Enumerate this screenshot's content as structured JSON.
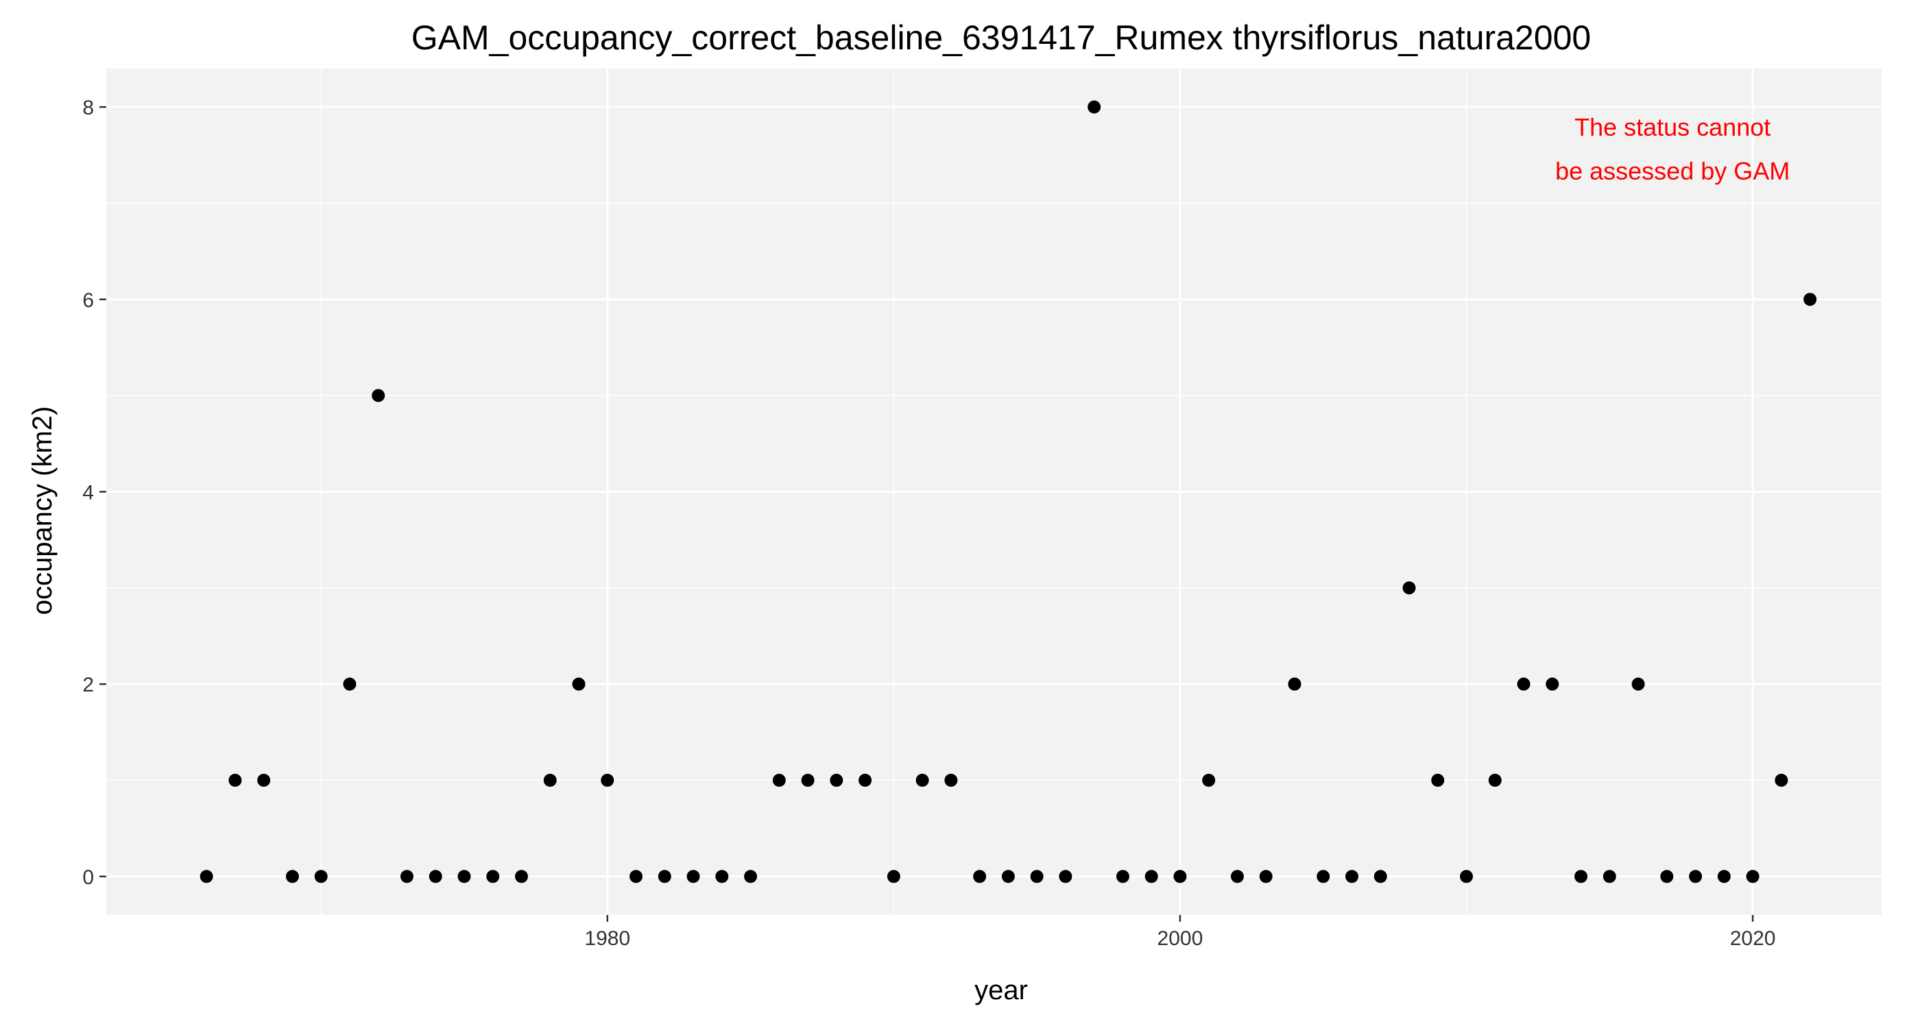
{
  "chart_data": {
    "type": "scatter",
    "title": "GAM_occupancy_correct_baseline_6391417_Rumex thyrsiflorus_natura2000",
    "xlabel": "year",
    "ylabel": "occupancy (km2)",
    "xlim": [
      1962.5,
      2024.5
    ],
    "ylim": [
      -0.4,
      8.4
    ],
    "xticks": [
      1980,
      2000,
      2020
    ],
    "yticks": [
      0,
      2,
      4,
      6,
      8
    ],
    "grid": true,
    "legend": "none",
    "colors": {
      "panel": "#f2f2f2",
      "grid": "#ffffff",
      "point": "#000000",
      "annotation": "#ff0000"
    },
    "annotation": {
      "lines": [
        "The status cannot",
        "be assessed by GAM"
      ],
      "position": "top-right"
    },
    "points": [
      {
        "x": 1966,
        "y": 0
      },
      {
        "x": 1967,
        "y": 1
      },
      {
        "x": 1968,
        "y": 1
      },
      {
        "x": 1969,
        "y": 0
      },
      {
        "x": 1970,
        "y": 0
      },
      {
        "x": 1971,
        "y": 2
      },
      {
        "x": 1972,
        "y": 5
      },
      {
        "x": 1973,
        "y": 0
      },
      {
        "x": 1974,
        "y": 0
      },
      {
        "x": 1975,
        "y": 0
      },
      {
        "x": 1976,
        "y": 0
      },
      {
        "x": 1977,
        "y": 0
      },
      {
        "x": 1978,
        "y": 1
      },
      {
        "x": 1979,
        "y": 2
      },
      {
        "x": 1980,
        "y": 1
      },
      {
        "x": 1981,
        "y": 0
      },
      {
        "x": 1982,
        "y": 0
      },
      {
        "x": 1983,
        "y": 0
      },
      {
        "x": 1984,
        "y": 0
      },
      {
        "x": 1985,
        "y": 0
      },
      {
        "x": 1986,
        "y": 1
      },
      {
        "x": 1987,
        "y": 1
      },
      {
        "x": 1988,
        "y": 1
      },
      {
        "x": 1989,
        "y": 1
      },
      {
        "x": 1990,
        "y": 0
      },
      {
        "x": 1991,
        "y": 1
      },
      {
        "x": 1992,
        "y": 1
      },
      {
        "x": 1993,
        "y": 0
      },
      {
        "x": 1994,
        "y": 0
      },
      {
        "x": 1995,
        "y": 0
      },
      {
        "x": 1996,
        "y": 0
      },
      {
        "x": 1997,
        "y": 8
      },
      {
        "x": 1998,
        "y": 0
      },
      {
        "x": 1999,
        "y": 0
      },
      {
        "x": 2000,
        "y": 0
      },
      {
        "x": 2001,
        "y": 1
      },
      {
        "x": 2002,
        "y": 0
      },
      {
        "x": 2003,
        "y": 0
      },
      {
        "x": 2004,
        "y": 2
      },
      {
        "x": 2005,
        "y": 0
      },
      {
        "x": 2006,
        "y": 0
      },
      {
        "x": 2007,
        "y": 0
      },
      {
        "x": 2008,
        "y": 3
      },
      {
        "x": 2009,
        "y": 1
      },
      {
        "x": 2010,
        "y": 0
      },
      {
        "x": 2011,
        "y": 1
      },
      {
        "x": 2012,
        "y": 2
      },
      {
        "x": 2013,
        "y": 2
      },
      {
        "x": 2014,
        "y": 0
      },
      {
        "x": 2015,
        "y": 0
      },
      {
        "x": 2016,
        "y": 2
      },
      {
        "x": 2017,
        "y": 0
      },
      {
        "x": 2018,
        "y": 0
      },
      {
        "x": 2019,
        "y": 0
      },
      {
        "x": 2020,
        "y": 0
      },
      {
        "x": 2021,
        "y": 1
      },
      {
        "x": 2022,
        "y": 6
      }
    ]
  }
}
